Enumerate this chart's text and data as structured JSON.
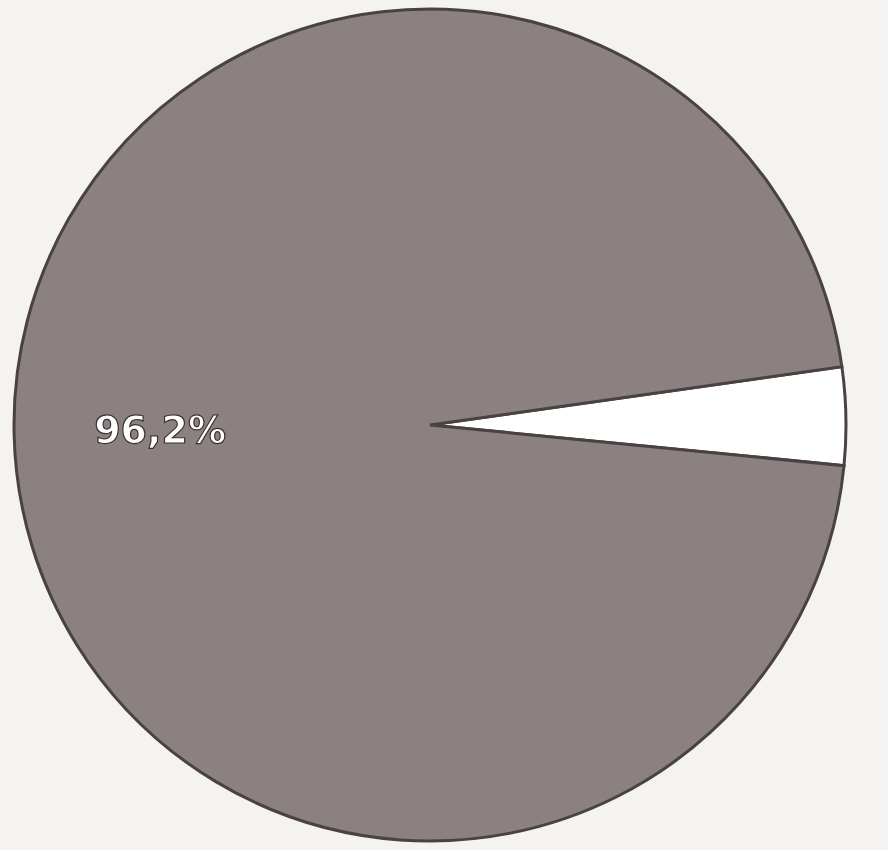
{
  "chart_data": {
    "type": "pie",
    "categories": [
      null,
      null
    ],
    "values": [
      3.8,
      96.2
    ],
    "colors": [
      "#ffffff",
      "#8b8180"
    ],
    "value_labels": [
      null,
      "96,2%"
    ]
  }
}
